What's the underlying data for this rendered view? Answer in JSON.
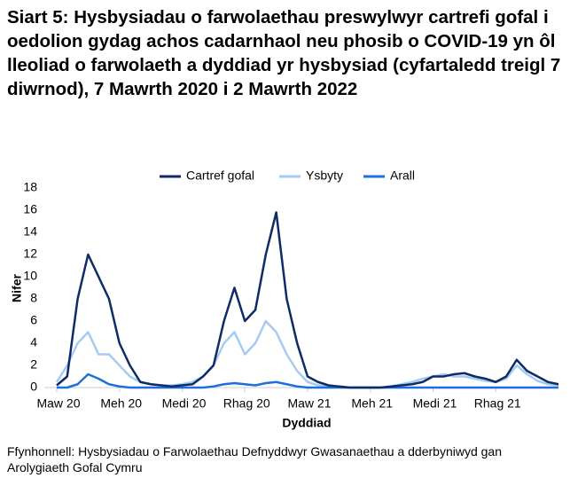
{
  "chart_data": {
    "type": "line",
    "title": "Siart 5: Hysbysiadau o farwolaethau preswylwyr cartrefi gofal i oedolion gydag achos cadarnhaol neu phosib o COVID-19 yn ôl lleoliad o farwolaeth a dyddiad yr hysbysiad (cyfartaledd treigl 7 diwrnod), 7 Mawrth 2020 i 2 Mawrth 2022",
    "x_label": "Dyddiad",
    "y_label": "Nifer",
    "source": "Ffynhonnell: Hysbysiadau o Farwolaethau Defnyddwyr Gwasanaethau a dderbyniwyd gan Arolygiaeth Gofal Cymru",
    "categories": [
      "Maw 20",
      null,
      null,
      null,
      null,
      null,
      "Meh 20",
      null,
      null,
      null,
      null,
      null,
      "Medi 20",
      null,
      null,
      null,
      null,
      null,
      "Rhag 20",
      null,
      null,
      null,
      null,
      null,
      "Maw 21",
      null,
      null,
      null,
      null,
      null,
      "Meh 21",
      null,
      null,
      null,
      null,
      null,
      "Medi 21",
      null,
      null,
      null,
      null,
      null,
      "Rhag 21",
      null,
      null,
      null,
      null,
      null,
      null
    ],
    "series": [
      {
        "name": "Cartref gofal",
        "color": "#0f2b67",
        "values": [
          0.2,
          1,
          8,
          12,
          10,
          8,
          4,
          2,
          0.5,
          0.3,
          0.2,
          0.1,
          0.2,
          0.3,
          1,
          2,
          6,
          9,
          6,
          7,
          12,
          15.8,
          8,
          4,
          1,
          0.5,
          0.2,
          0.1,
          0,
          0,
          0,
          0,
          0.1,
          0.2,
          0.3,
          0.5,
          1,
          1,
          1.2,
          1.3,
          1,
          0.8,
          0.5,
          1,
          2.5,
          1.5,
          1,
          0.5,
          0.3
        ]
      },
      {
        "name": "Ysbyty",
        "color": "#a6cbf2",
        "values": [
          0.5,
          2,
          4,
          5,
          3,
          3,
          2,
          1,
          0.5,
          0.3,
          0.2,
          0.2,
          0.3,
          0.5,
          1,
          2,
          4,
          5,
          3,
          4,
          6,
          5,
          3,
          1.5,
          0.5,
          0.2,
          0.1,
          0.1,
          0,
          0,
          0,
          0,
          0.1,
          0.3,
          0.5,
          0.8,
          1,
          1.2,
          1,
          1,
          0.8,
          0.6,
          0.5,
          0.8,
          2,
          1.2,
          0.6,
          0.3,
          0.2
        ]
      },
      {
        "name": "Arall",
        "color": "#1e6fd9",
        "values": [
          0,
          0,
          0.3,
          1.2,
          0.8,
          0.3,
          0.1,
          0,
          0,
          0,
          0,
          0,
          0,
          0,
          0,
          0.1,
          0.3,
          0.4,
          0.3,
          0.2,
          0.4,
          0.5,
          0.3,
          0.1,
          0,
          0,
          0,
          0,
          0,
          0,
          0,
          0,
          0,
          0,
          0,
          0,
          0,
          0,
          0,
          0,
          0,
          0,
          0,
          0,
          0,
          0,
          0,
          0,
          0
        ]
      }
    ],
    "ylim": [
      0,
      18
    ],
    "yticks": [
      0,
      2,
      4,
      6,
      8,
      10,
      12,
      14,
      16,
      18
    ],
    "grid": false
  }
}
